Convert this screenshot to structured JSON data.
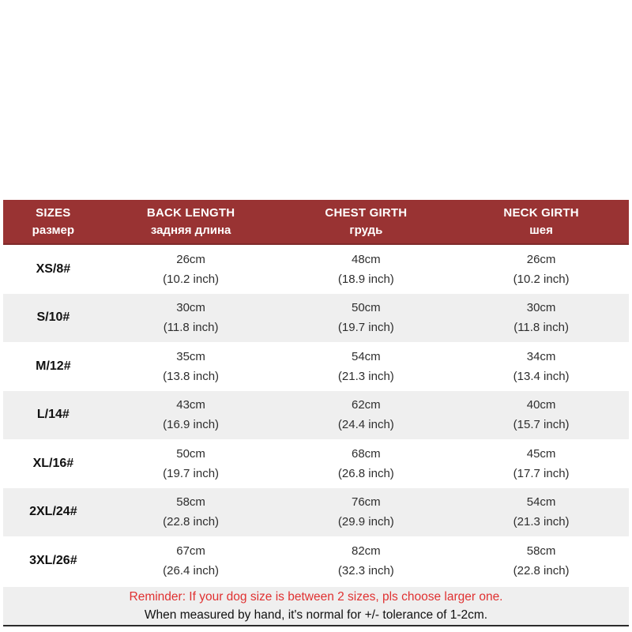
{
  "chart_data": {
    "type": "table",
    "title": "Dog apparel size chart",
    "headers": [
      {
        "en": "SIZES",
        "ru": "размер"
      },
      {
        "en": "BACK LENGTH",
        "ru": "задняя длина"
      },
      {
        "en": "CHEST GIRTH",
        "ru": "грудь"
      },
      {
        "en": "NECK GIRTH",
        "ru": "шея"
      }
    ],
    "rows": [
      {
        "size": "XS/8#",
        "back_cm": "26cm",
        "back_inch": "(10.2 inch)",
        "chest_cm": "48cm",
        "chest_inch": "(18.9 inch)",
        "neck_cm": "26cm",
        "neck_inch": "(10.2 inch)"
      },
      {
        "size": "S/10#",
        "back_cm": "30cm",
        "back_inch": "(11.8 inch)",
        "chest_cm": "50cm",
        "chest_inch": "(19.7 inch)",
        "neck_cm": "30cm",
        "neck_inch": "(11.8 inch)"
      },
      {
        "size": "M/12#",
        "back_cm": "35cm",
        "back_inch": "(13.8 inch)",
        "chest_cm": "54cm",
        "chest_inch": "(21.3 inch)",
        "neck_cm": "34cm",
        "neck_inch": "(13.4 inch)"
      },
      {
        "size": "L/14#",
        "back_cm": "43cm",
        "back_inch": "(16.9 inch)",
        "chest_cm": "62cm",
        "chest_inch": "(24.4 inch)",
        "neck_cm": "40cm",
        "neck_inch": "(15.7 inch)"
      },
      {
        "size": "XL/16#",
        "back_cm": "50cm",
        "back_inch": "(19.7 inch)",
        "chest_cm": "68cm",
        "chest_inch": "(26.8 inch)",
        "neck_cm": "45cm",
        "neck_inch": "(17.7 inch)"
      },
      {
        "size": "2XL/24#",
        "back_cm": "58cm",
        "back_inch": "(22.8 inch)",
        "chest_cm": "76cm",
        "chest_inch": "(29.9 inch)",
        "neck_cm": "54cm",
        "neck_inch": "(21.3 inch)"
      },
      {
        "size": "3XL/26#",
        "back_cm": "67cm",
        "back_inch": "(26.4 inch)",
        "chest_cm": "82cm",
        "chest_inch": "(32.3 inch)",
        "neck_cm": "58cm",
        "neck_inch": "(22.8 inch)"
      }
    ]
  },
  "footer": {
    "reminder": "Reminder: If your dog size is between 2 sizes, pls choose larger one.",
    "tolerance": "When measured by hand, it's normal for +/- tolerance of 1-2cm."
  },
  "colors": {
    "header_bg": "#993333",
    "header_text": "#ffffff",
    "alt_row_bg": "#efefef",
    "footer_bg": "#efefef",
    "reminder_red": "#e03131",
    "body_text": "#2e2e2e",
    "bottom_rule": "#2b2b2b"
  }
}
